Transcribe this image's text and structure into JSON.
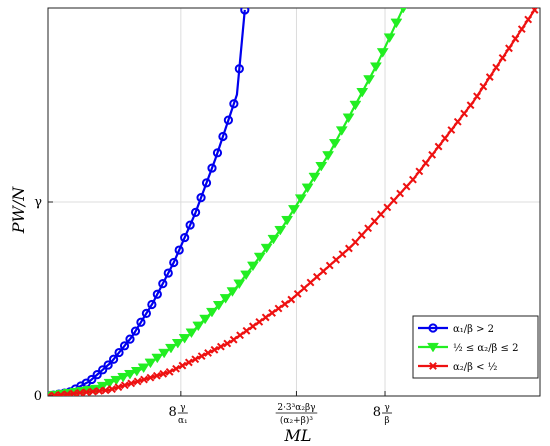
{
  "chart_data": {
    "type": "line",
    "title": "",
    "xlabel": "ML",
    "ylabel": "PW/N",
    "xlim": [
      0,
      10
    ],
    "ylim": [
      0,
      2
    ],
    "grid": true,
    "legend_position": "bottom-right",
    "x_ticks": [
      {
        "value": 2.7,
        "label_top": "γ",
        "label_bottom": "α₁",
        "label_prefix": "8"
      },
      {
        "value": 5.05,
        "label_top": "2·3³α₂βγ",
        "label_bottom": "(α₂+β)³",
        "label_prefix": ""
      },
      {
        "value": 6.85,
        "label_top": "γ",
        "label_bottom": "β",
        "label_prefix": "8"
      }
    ],
    "y_ticks": [
      {
        "value": 0,
        "label": "0"
      },
      {
        "value": 1,
        "label": "γ"
      }
    ],
    "series": [
      {
        "name": "α₁/β > 2",
        "color": "#0000ee",
        "marker": "circle",
        "x": [
          0.0,
          0.43,
          0.85,
          1.28,
          1.71,
          2.13,
          2.56,
          2.99,
          3.41,
          3.84,
          4.0
        ],
        "y": [
          0.0,
          0.0192,
          0.0767,
          0.1726,
          0.3068,
          0.4794,
          0.6904,
          0.9397,
          1.2274,
          1.5535,
          1.99
        ]
      },
      {
        "name": "½ ≤ α₂/β ≤ 2",
        "color": "#22ee22",
        "marker": "triangle-down",
        "x": [
          0.0,
          0.96,
          1.91,
          2.87,
          3.83,
          4.78,
          5.74,
          6.7,
          7.22
        ],
        "y": [
          0.0,
          0.035,
          0.1399,
          0.315,
          0.56,
          0.875,
          1.2597,
          1.715,
          2.0
        ]
      },
      {
        "name": "α₂/β < ½",
        "color": "#ee1111",
        "marker": "x",
        "x": [
          0.0,
          1.24,
          2.47,
          3.71,
          4.94,
          6.18,
          7.42,
          8.65,
          9.89
        ],
        "y": [
          0.0,
          0.031,
          0.124,
          0.279,
          0.496,
          0.775,
          1.116,
          1.519,
          1.99
        ]
      }
    ]
  }
}
